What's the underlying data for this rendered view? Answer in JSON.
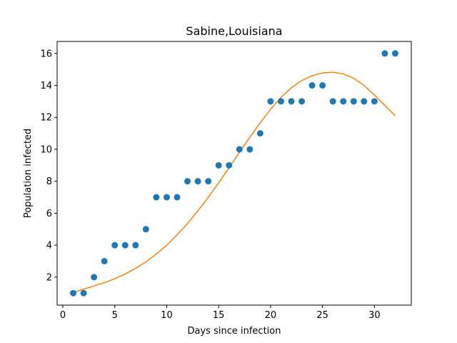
{
  "chart_data": {
    "type": "scatter",
    "title": "Sabine,Louisiana",
    "xlabel": "Days since infection",
    "ylabel": "Population infected",
    "xlim": [
      -0.55,
      33.55
    ],
    "ylim": [
      0.25,
      16.75
    ],
    "xticks": [
      0,
      5,
      10,
      15,
      20,
      25,
      30
    ],
    "yticks": [
      2,
      4,
      6,
      8,
      10,
      12,
      14,
      16
    ],
    "grid": false,
    "series": [
      {
        "kind": "scatter",
        "color": "#1f77b4",
        "x": [
          1,
          2,
          3,
          4,
          5,
          6,
          7,
          8,
          9,
          10,
          11,
          12,
          13,
          14,
          15,
          16,
          17,
          18,
          19,
          20,
          21,
          22,
          23,
          24,
          25,
          26,
          27,
          28,
          29,
          30,
          31,
          32
        ],
        "y": [
          1,
          1,
          2,
          3,
          4,
          4,
          4,
          5,
          7,
          7,
          7,
          8,
          8,
          8,
          9,
          9,
          10,
          10,
          11,
          13,
          13,
          13,
          13,
          14,
          14,
          13,
          13,
          13,
          13,
          13,
          16,
          16
        ]
      },
      {
        "kind": "line",
        "color": "#ff7f0e",
        "x": [
          1,
          2,
          3,
          4,
          5,
          6,
          7,
          8,
          9,
          10,
          11,
          12,
          13,
          14,
          15,
          16,
          17,
          18,
          19,
          20,
          21,
          22,
          23,
          24,
          25,
          26,
          27,
          28,
          29,
          30,
          31,
          32
        ],
        "y": [
          1.05,
          1.25,
          1.45,
          1.65,
          1.9,
          2.2,
          2.55,
          2.95,
          3.45,
          4.0,
          4.65,
          5.35,
          6.15,
          7.0,
          7.9,
          8.85,
          9.8,
          10.75,
          11.65,
          12.5,
          13.25,
          13.85,
          14.3,
          14.6,
          14.78,
          14.82,
          14.72,
          14.45,
          14.0,
          13.4,
          12.75,
          12.1
        ]
      }
    ]
  }
}
